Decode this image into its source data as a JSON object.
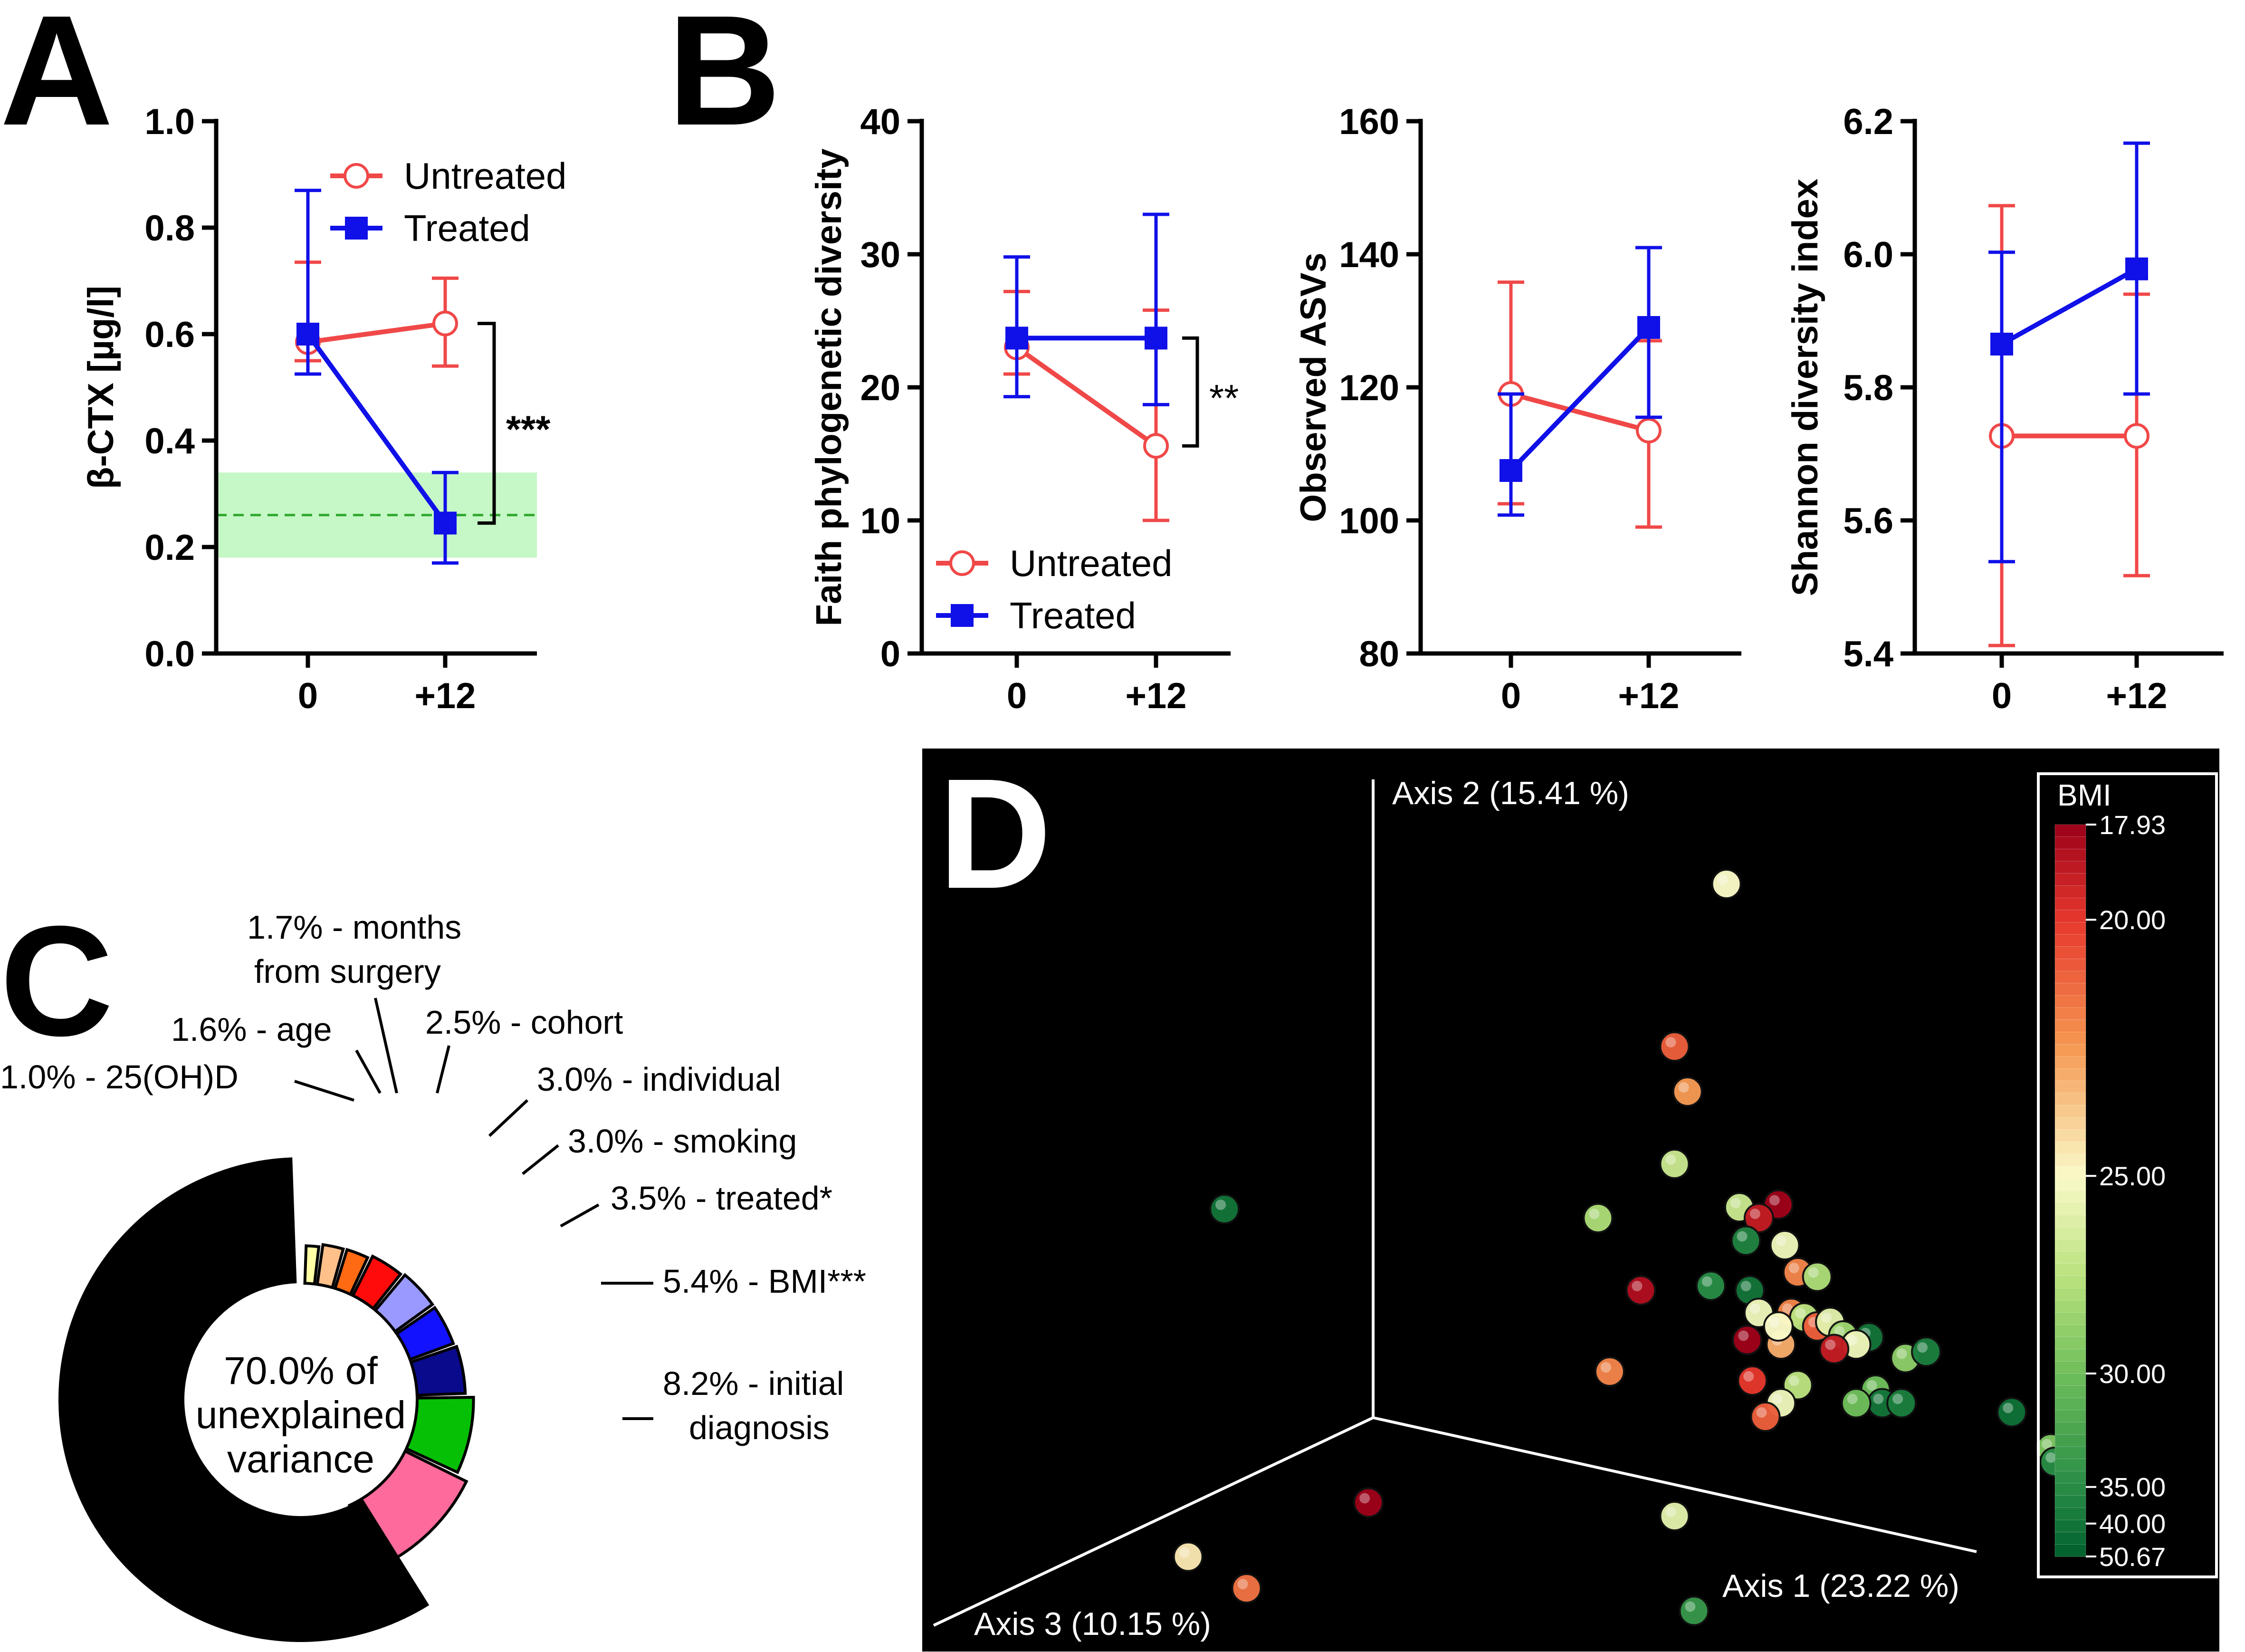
{
  "panel_labels": {
    "a": "A",
    "b": "B",
    "c": "C",
    "d": "D"
  },
  "chart_data": [
    {
      "id": "A",
      "type": "line",
      "ylabel": "β-CTX [µg/l]",
      "xlabel": "",
      "categories": [
        "0",
        "+12"
      ],
      "ylim": [
        0,
        1.0
      ],
      "yticks": [
        "0.0",
        "0.2",
        "0.4",
        "0.6",
        "0.8",
        "1.0"
      ],
      "reference_band": {
        "low": 0.18,
        "high": 0.34,
        "mean": 0.26,
        "color": "#c6f7c6",
        "line_color": "#2ea82e"
      },
      "significance": "***",
      "series": [
        {
          "name": "Untreated",
          "values": [
            0.585,
            0.62
          ],
          "err_low": [
            0.55,
            0.54
          ],
          "err_high": [
            0.735,
            0.705
          ],
          "color": "#f04848",
          "marker": "open-circle"
        },
        {
          "name": "Treated",
          "values": [
            0.6,
            0.245
          ],
          "err_low": [
            0.525,
            0.17
          ],
          "err_high": [
            0.87,
            0.34
          ],
          "color": "#1010e8",
          "marker": "filled-square"
        }
      ]
    },
    {
      "id": "B1",
      "type": "line",
      "ylabel": "Faith phylogenetic diversity",
      "categories": [
        "0",
        "+12"
      ],
      "ylim": [
        0,
        40
      ],
      "yticks": [
        "0",
        "10",
        "20",
        "30",
        "40"
      ],
      "significance": "**",
      "series": [
        {
          "name": "Untreated",
          "values": [
            23.0,
            15.6
          ],
          "err_low": [
            21.0,
            10.0
          ],
          "err_high": [
            27.2,
            25.8
          ],
          "color": "#f04848",
          "marker": "open-circle"
        },
        {
          "name": "Treated",
          "values": [
            23.7,
            23.7
          ],
          "err_low": [
            19.3,
            18.7
          ],
          "err_high": [
            29.8,
            33.0
          ],
          "color": "#1010e8",
          "marker": "filled-square"
        }
      ]
    },
    {
      "id": "B2",
      "type": "line",
      "ylabel": "Observed ASVs",
      "categories": [
        "0",
        "+12"
      ],
      "ylim": [
        80,
        160
      ],
      "yticks": [
        "80",
        "100",
        "120",
        "140",
        "160"
      ],
      "series": [
        {
          "name": "Untreated",
          "values": [
            119.0,
            113.5
          ],
          "err_low": [
            102.5,
            99.0
          ],
          "err_high": [
            135.8,
            127.0
          ],
          "color": "#f04848",
          "marker": "open-circle"
        },
        {
          "name": "Treated",
          "values": [
            107.5,
            129.0
          ],
          "err_low": [
            100.8,
            115.5
          ],
          "err_high": [
            119.0,
            141.0
          ],
          "color": "#1010e8",
          "marker": "filled-square"
        }
      ]
    },
    {
      "id": "B3",
      "type": "line",
      "ylabel": "Shannon diversity index",
      "categories": [
        "0",
        "+12"
      ],
      "ylim": [
        5.4,
        6.2
      ],
      "yticks": [
        "5.4",
        "5.6",
        "5.8",
        "6.0",
        "6.2"
      ],
      "series": [
        {
          "name": "Untreated",
          "values": [
            5.727,
            5.727
          ],
          "err_low": [
            5.412,
            5.517
          ],
          "err_high": [
            6.073,
            5.94
          ],
          "color": "#f04848",
          "marker": "open-circle"
        },
        {
          "name": "Treated",
          "values": [
            5.865,
            5.978
          ],
          "err_low": [
            5.538,
            5.79
          ],
          "err_high": [
            6.003,
            6.167
          ],
          "color": "#1010e8",
          "marker": "filled-square"
        }
      ]
    },
    {
      "id": "C",
      "type": "pie",
      "center_label": [
        "70.0% of",
        "unexplained",
        "variance"
      ],
      "slices": [
        {
          "label": "1.0% - 25(OH)D",
          "value": 1.0,
          "color": "#ffffa6"
        },
        {
          "label": "1.6% - age",
          "value": 1.6,
          "color": "#ffc08a"
        },
        {
          "label_lines": [
            "1.7% - months",
            "from surgery"
          ],
          "value": 1.7,
          "color": "#ff6a12"
        },
        {
          "label": "2.5% - cohort",
          "value": 2.5,
          "color": "#ff0b0b"
        },
        {
          "label": "3.0% - individual",
          "value": 3.0,
          "color": "#9999ff"
        },
        {
          "label": "3.0% - smoking",
          "value": 3.0,
          "color": "#1212ff"
        },
        {
          "label": "3.5% - treated*",
          "value": 3.5,
          "color": "#0a0a8c"
        },
        {
          "label": "5.4% - BMI***",
          "value": 5.4,
          "color": "#06c006"
        },
        {
          "label_lines": [
            "8.2% - initial",
            "diagnosis"
          ],
          "value": 8.2,
          "color": "#ff6a9c"
        },
        {
          "label": "unexplained",
          "value": 70.0,
          "color": "#000000"
        }
      ]
    },
    {
      "id": "D",
      "type": "scatter",
      "axes": [
        "Axis 1 (23.22 %)",
        "Axis 2 (15.41 %)",
        "Axis 3 (10.15 %)"
      ],
      "colorbar": {
        "title": "BMI",
        "tick_labels": [
          "17.93",
          "20.00",
          "25.00",
          "30.00",
          "35.00",
          "40.00",
          "50.67"
        ],
        "tick_values": [
          17.93,
          20.0,
          25.0,
          30.0,
          35.0,
          40.0,
          50.67
        ],
        "tick_fraction": [
          0.0,
          0.13,
          0.48,
          0.75,
          0.905,
          0.955,
          1.0
        ]
      },
      "points": [
        {
          "p": [
            0.62,
            0.15
          ],
          "bmi": 25.0
        },
        {
          "p": [
            0.58,
            0.33
          ],
          "bmi": 21.0
        },
        {
          "p": [
            0.59,
            0.38
          ],
          "bmi": 22.5
        },
        {
          "p": [
            0.58,
            0.46
          ],
          "bmi": 27.0
        },
        {
          "p": [
            0.233,
            0.51
          ],
          "bmi": 40.0
        },
        {
          "p": [
            0.521,
            0.52
          ],
          "bmi": 28.0
        },
        {
          "p": [
            0.63,
            0.508
          ],
          "bmi": 27.0
        },
        {
          "p": [
            0.66,
            0.505
          ],
          "bmi": 18.0
        },
        {
          "p": [
            0.645,
            0.52
          ],
          "bmi": 19.0
        },
        {
          "p": [
            0.635,
            0.545
          ],
          "bmi": 37.0
        },
        {
          "p": [
            0.665,
            0.55
          ],
          "bmi": 25.5
        },
        {
          "p": [
            0.675,
            0.58
          ],
          "bmi": 22.0
        },
        {
          "p": [
            0.69,
            0.585
          ],
          "bmi": 28.0
        },
        {
          "p": [
            0.608,
            0.595
          ],
          "bmi": 35.0
        },
        {
          "p": [
            0.554,
            0.6
          ],
          "bmi": 18.5
        },
        {
          "p": [
            0.638,
            0.6
          ],
          "bmi": 40.0
        },
        {
          "p": [
            0.645,
            0.625
          ],
          "bmi": 25.5
        },
        {
          "p": [
            0.67,
            0.625
          ],
          "bmi": 22.0
        },
        {
          "p": [
            0.68,
            0.63
          ],
          "bmi": 27.5
        },
        {
          "p": [
            0.69,
            0.64
          ],
          "bmi": 21.0
        },
        {
          "p": [
            0.7,
            0.635
          ],
          "bmi": 26.0
        },
        {
          "p": [
            0.71,
            0.65
          ],
          "bmi": 28.5
        },
        {
          "p": [
            0.73,
            0.652
          ],
          "bmi": 40.0
        },
        {
          "p": [
            0.72,
            0.66
          ],
          "bmi": 25.5
        },
        {
          "p": [
            0.703,
            0.665
          ],
          "bmi": 19.0
        },
        {
          "p": [
            0.662,
            0.66
          ],
          "bmi": 23.0
        },
        {
          "p": [
            0.636,
            0.655
          ],
          "bmi": 18.0
        },
        {
          "p": [
            0.66,
            0.64
          ],
          "bmi": 25.0
        },
        {
          "p": [
            0.758,
            0.675
          ],
          "bmi": 29.0
        },
        {
          "p": [
            0.774,
            0.668
          ],
          "bmi": 38.0
        },
        {
          "p": [
            0.53,
            0.69
          ],
          "bmi": 22.0
        },
        {
          "p": [
            0.64,
            0.7
          ],
          "bmi": 20.0
        },
        {
          "p": [
            0.675,
            0.705
          ],
          "bmi": 27.5
        },
        {
          "p": [
            0.662,
            0.725
          ],
          "bmi": 25.5
        },
        {
          "p": [
            0.65,
            0.74
          ],
          "bmi": 21.0
        },
        {
          "p": [
            0.735,
            0.71
          ],
          "bmi": 30.0
        },
        {
          "p": [
            0.74,
            0.725
          ],
          "bmi": 40.0
        },
        {
          "p": [
            0.72,
            0.725
          ],
          "bmi": 30.0
        },
        {
          "p": [
            0.755,
            0.725
          ],
          "bmi": 38.0
        },
        {
          "p": [
            0.84,
            0.735
          ],
          "bmi": 42.0
        },
        {
          "p": [
            0.87,
            0.775
          ],
          "bmi": 29.5
        },
        {
          "p": [
            0.873,
            0.79
          ],
          "bmi": 35.0
        },
        {
          "p": [
            0.58,
            0.85
          ],
          "bmi": 26.0
        },
        {
          "p": [
            0.344,
            0.835
          ],
          "bmi": 18.0
        },
        {
          "p": [
            0.205,
            0.895
          ],
          "bmi": 24.5
        },
        {
          "p": [
            0.25,
            0.93
          ],
          "bmi": 21.5
        },
        {
          "p": [
            0.595,
            0.955
          ],
          "bmi": 34.0
        }
      ]
    }
  ]
}
